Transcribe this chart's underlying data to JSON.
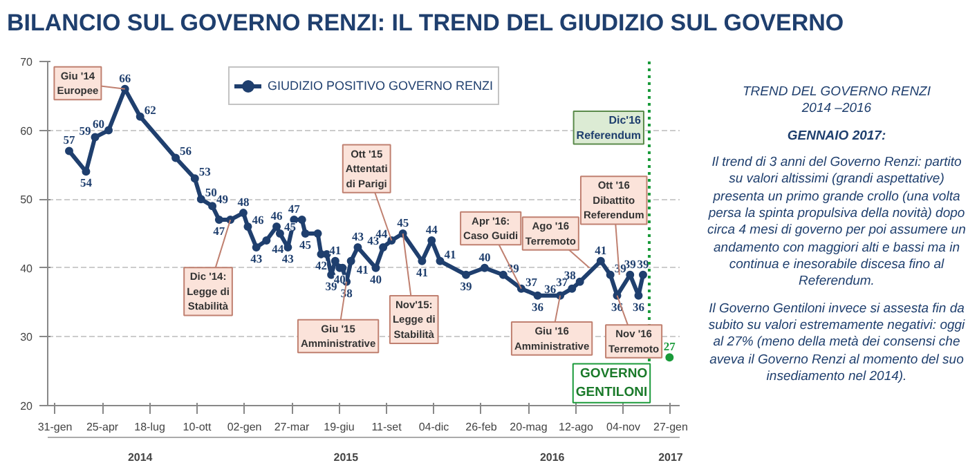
{
  "chart_data": {
    "type": "line",
    "title": "BILANCIO SUL GOVERNO RENZI: IL TREND DEL GIUDIZIO SUL GOVERNO",
    "xlim": [
      "2014-01-18",
      "2017-02-12"
    ],
    "xticks": [
      {
        "value": "2014-01-31",
        "label": "31-gen"
      },
      {
        "value": "2014-04-25",
        "label": "25-apr"
      },
      {
        "value": "2014-07-18",
        "label": "18-lug"
      },
      {
        "value": "2014-10-10",
        "label": "10-ott"
      },
      {
        "value": "2015-01-02",
        "label": "02-gen"
      },
      {
        "value": "2015-03-27",
        "label": "27-mar"
      },
      {
        "value": "2015-06-19",
        "label": "19-giu"
      },
      {
        "value": "2015-09-11",
        "label": "11-set"
      },
      {
        "value": "2015-12-04",
        "label": "04-dic"
      },
      {
        "value": "2016-02-26",
        "label": "26-feb"
      },
      {
        "value": "2016-05-20",
        "label": "20-mag"
      },
      {
        "value": "2016-08-12",
        "label": "12-ago"
      },
      {
        "value": "2016-11-04",
        "label": "04-nov"
      },
      {
        "value": "2017-01-27",
        "label": "27-gen"
      }
    ],
    "x2lim": [
      "2014-01-18",
      "2017-02-12"
    ],
    "x2ticks": [
      {
        "value": "2014-07-01",
        "label": "2014"
      },
      {
        "value": "2015-07-01",
        "label": "2015"
      },
      {
        "value": "2016-07-01",
        "label": "2016"
      },
      {
        "value": "2017-01-27",
        "label": "2017"
      }
    ],
    "ylim": [
      20,
      70
    ],
    "yticks": [
      20,
      30,
      40,
      50,
      60,
      70
    ],
    "grid": "y",
    "legend": "top",
    "marker": "circle",
    "series": [
      {
        "name": "GIUDIZIO POSITIVO GOVERNO RENZI",
        "color": "#1f3f6e",
        "x": [
          "2014-02-25",
          "2014-03-27",
          "2014-04-12",
          "2014-05-06",
          "2014-06-04",
          "2014-07-01",
          "2014-09-02",
          "2014-10-06",
          "2014-10-17",
          "2014-11-06",
          "2014-11-18",
          "2014-12-08",
          "2014-12-31",
          "2015-01-08",
          "2015-01-23",
          "2015-02-10",
          "2015-02-28",
          "2015-03-06",
          "2015-03-20",
          "2015-03-31",
          "2015-04-14",
          "2015-04-20",
          "2015-05-12",
          "2015-05-18",
          "2015-05-28",
          "2015-06-05",
          "2015-06-12",
          "2015-06-20",
          "2015-06-25",
          "2015-07-02",
          "2015-07-10",
          "2015-07-22",
          "2015-08-23",
          "2015-09-05",
          "2015-09-20",
          "2015-10-10",
          "2015-11-13",
          "2015-11-30",
          "2015-12-15",
          "2016-01-30",
          "2016-03-03",
          "2016-04-05",
          "2016-05-07",
          "2016-06-05",
          "2016-07-15",
          "2016-08-05",
          "2016-08-19",
          "2016-09-25",
          "2016-10-12",
          "2016-10-24",
          "2016-11-16",
          "2016-12-01",
          "2016-12-09"
        ],
        "value_labels": [
          "57",
          "54",
          "59",
          "60",
          "66",
          "62",
          "56",
          "53",
          "50",
          "49",
          "47",
          null,
          "48",
          "46",
          "43",
          "44",
          "46",
          "45",
          "43",
          "47",
          null,
          "45",
          null,
          "42",
          null,
          "39",
          "41",
          "40",
          null,
          "38",
          "41",
          "43",
          "40",
          "43",
          "44",
          "45",
          "41",
          "44",
          "41",
          "39",
          "40",
          "39",
          "37",
          "36",
          "36",
          "37",
          "38",
          "41",
          "39",
          "36",
          "39",
          "36",
          "39"
        ],
        "values": [
          57,
          54,
          59,
          60,
          66,
          62,
          56,
          53,
          50,
          49,
          47,
          47,
          48,
          46,
          43,
          44,
          46,
          45,
          43,
          47,
          47,
          45,
          45,
          42,
          42,
          39,
          41,
          40,
          40,
          38,
          41,
          43,
          40,
          43,
          44,
          45,
          41,
          44,
          41,
          39,
          40,
          39,
          37,
          36,
          36,
          37,
          38,
          41,
          39,
          36,
          39,
          36,
          39
        ]
      },
      {
        "type": "scatter",
        "color": "#1a9a3a",
        "x": [
          "2017-01-25"
        ],
        "values": [
          27
        ],
        "value_labels": [
          "27"
        ]
      }
    ],
    "ref_lines": [
      {
        "axis": "x",
        "value": "2016-12-20",
        "label": "Dic'16\nReferendum",
        "color": "#1a9a3a",
        "line_style": "dotted"
      }
    ],
    "annotations": [
      {
        "text": "Giu '14\nEuropee",
        "x": "2014-06-04",
        "y": 66
      },
      {
        "text": "Dic '14:\nLegge di\nStabilità",
        "x": "2014-12-08",
        "y": 47
      },
      {
        "text": "Giu '15\nAmministrative",
        "x": "2015-07-02",
        "y": 38
      },
      {
        "text": "Ott '15\nAttentati\ndi Parigi",
        "x": "2015-09-20",
        "y": 44
      },
      {
        "text": "Nov'15:\nLegge di\nStabilità",
        "x": "2015-10-10",
        "y": 45
      },
      {
        "text": "Apr '16:\nCaso Guidi",
        "x": "2016-05-07",
        "y": 37
      },
      {
        "text": "Ago '16\nTerremoto",
        "x": "2016-09-05",
        "y": 40
      },
      {
        "text": "Ott '16\nDibattito\nReferendum",
        "x": "2016-10-28",
        "y": 39
      },
      {
        "text": "Giu '16\nAmministrative",
        "x": "2016-07-15",
        "y": 36
      },
      {
        "text": "Nov '16\nTerremoto",
        "x": "2016-10-24",
        "y": 36
      },
      {
        "text": "GOVERNO\nGENTILONI",
        "x": "2017-01-25",
        "y": 27
      },
      "TREND DEL GOVERNO RENZI\n2014 –2016",
      "GENNAIO 2017:",
      "Il trend di 3 anni del Governo Renzi: partito su valori altissimi (grandi aspettative) presenta un primo grande crollo (una volta persa la spinta propulsiva della novità) dopo circa 4 mesi di governo per poi assumere un andamento con maggiori alti e bassi ma in continua e inesorabile discesa fino al Referendum.",
      "Il Governo Gentiloni invece si assesta fin da subito su valori estremamente negativi: oggi al 27% (meno della metà dei consensi che aveva il Governo Renzi al momento del suo insediamento nel 2014)."
    ]
  }
}
